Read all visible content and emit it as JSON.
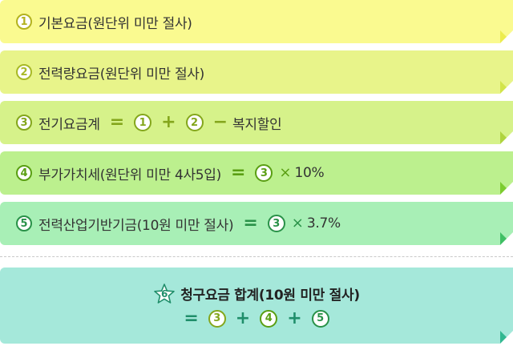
{
  "colors": {
    "card1_bg": "#fafa90",
    "card1_fold": "#ecec4e",
    "card1_accent": "#b3b21f",
    "card2_bg": "#e8f48a",
    "card2_fold": "#d2e44a",
    "card2_accent": "#a8b927",
    "card3_bg": "#d6f28a",
    "card3_fold": "#afd43f",
    "card3_accent": "#84a61c",
    "card4_bg": "#bcf08e",
    "card4_fold": "#7ccc2f",
    "card4_accent": "#5a9e13",
    "card5_bg": "#a8efb6",
    "card5_fold": "#3fbf64",
    "card5_accent": "#299148",
    "total_bg": "#a5e8da",
    "total_fold": "#32b891",
    "total_accent": "#1f8e6a"
  },
  "items": [
    {
      "num": "1",
      "text": "기본요금(원단위 미만 절사)"
    },
    {
      "num": "2",
      "text": "전력량요금(원단위 미만 절사)"
    },
    {
      "num": "3",
      "text": "전기요금계",
      "eq": "=",
      "a": "1",
      "plus": "+",
      "b": "2",
      "minus": "−",
      "tail": "복지할인"
    },
    {
      "num": "4",
      "text": "부가가치세(원단위 미만 4사5입)",
      "eq": "=",
      "a": "3",
      "times": "×",
      "tail": "10%"
    },
    {
      "num": "5",
      "text": "전력산업기반기금(10원 미만 절사)",
      "eq": "=",
      "a": "3",
      "times": "×",
      "tail": "3.7%"
    }
  ],
  "total": {
    "num": "6",
    "title": "청구요금 합계(10원 미만 절사)",
    "eq": "=",
    "a": "3",
    "plus1": "+",
    "b": "4",
    "plus2": "+",
    "c": "5"
  }
}
